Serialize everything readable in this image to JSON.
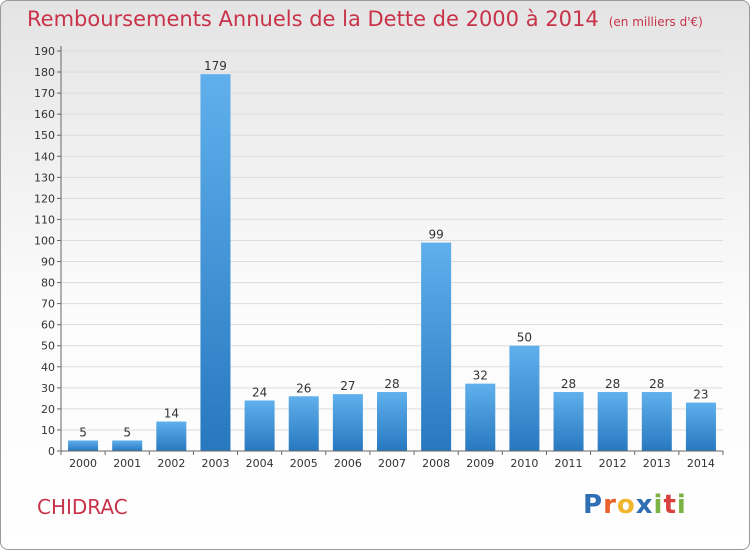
{
  "title": "Remboursements Annuels de la Dette de 2000 à 2014",
  "unit": "(en milliers d'€)",
  "commune": "CHIDRAC",
  "logo": {
    "letters": [
      "P",
      "r",
      "o",
      "x",
      "i",
      "t",
      "i"
    ],
    "colors": [
      "#2f6db5",
      "#e8622c",
      "#f0b62c",
      "#2f6db5",
      "#7cb342",
      "#d9413e",
      "#7cb342"
    ]
  },
  "chart_data": {
    "type": "bar",
    "title": "Remboursements Annuels de la Dette de 2000 à 2014",
    "xlabel": "",
    "ylabel": "",
    "categories": [
      "2000",
      "2001",
      "2002",
      "2003",
      "2004",
      "2005",
      "2006",
      "2007",
      "2008",
      "2009",
      "2010",
      "2011",
      "2012",
      "2013",
      "2014"
    ],
    "values": [
      5,
      5,
      14,
      179,
      24,
      26,
      27,
      28,
      99,
      32,
      50,
      28,
      28,
      28,
      23
    ],
    "ylim": [
      0,
      190
    ],
    "yticks": [
      0,
      10,
      20,
      30,
      40,
      50,
      60,
      70,
      80,
      90,
      100,
      110,
      120,
      130,
      140,
      150,
      160,
      170,
      180,
      190
    ],
    "grid": true,
    "bar_color": "#3d93d6"
  }
}
